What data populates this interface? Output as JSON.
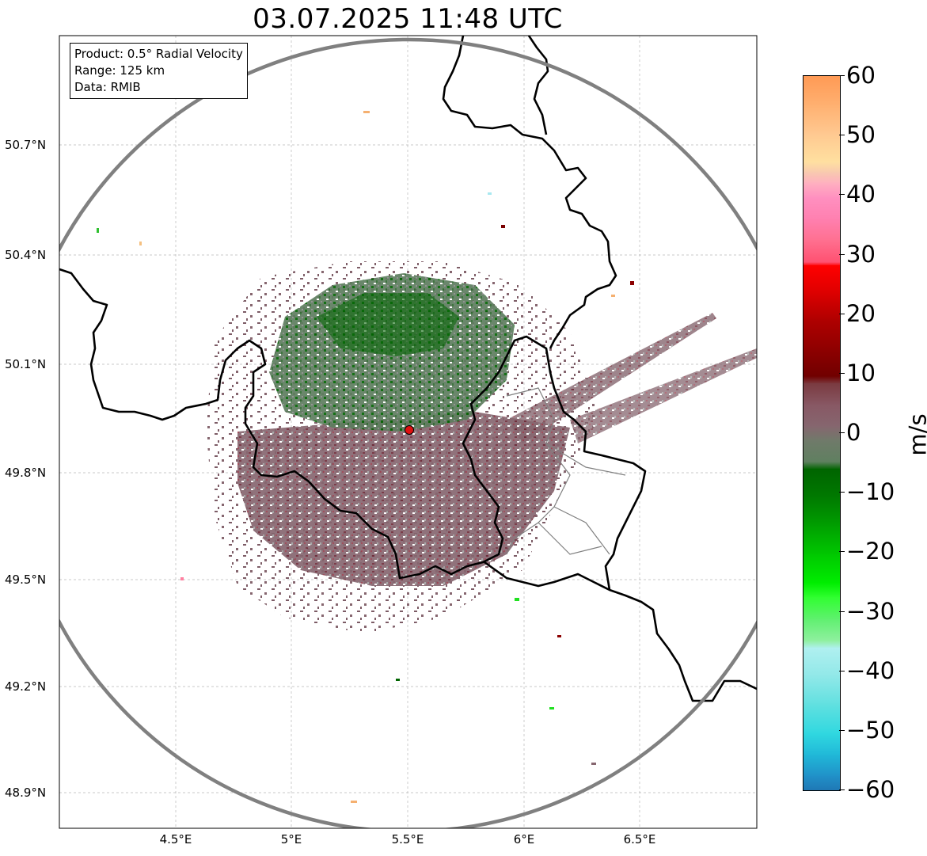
{
  "title": "03.07.2025 11:48 UTC",
  "info": {
    "product": "Product: 0.5° Radial Velocity",
    "range": "Range: 125 km",
    "data": "Data: RMIB"
  },
  "axes": {
    "lat_labels": [
      "50.7°N",
      "50.4°N",
      "50.1°N",
      "49.8°N",
      "49.5°N",
      "49.2°N",
      "48.9°N"
    ],
    "lon_labels": [
      "4.5°E",
      "5°E",
      "5.5°E",
      "6°E",
      "6.5°E"
    ]
  },
  "colorbar": {
    "unit": "m/s",
    "min": -60,
    "max": 60,
    "tick_labels": [
      "60",
      "50",
      "40",
      "30",
      "20",
      "10",
      "0",
      "−10",
      "−20",
      "−30",
      "−40",
      "−50",
      "−60"
    ]
  },
  "colors": {
    "radar_ring": "#808080",
    "border": "#000000",
    "grid": "#b8b8b8",
    "site_marker": "#e01010",
    "near_zero_pos": "#8a6a74",
    "near_zero_neg": "#5f8060",
    "dark_green": "#006400"
  }
}
